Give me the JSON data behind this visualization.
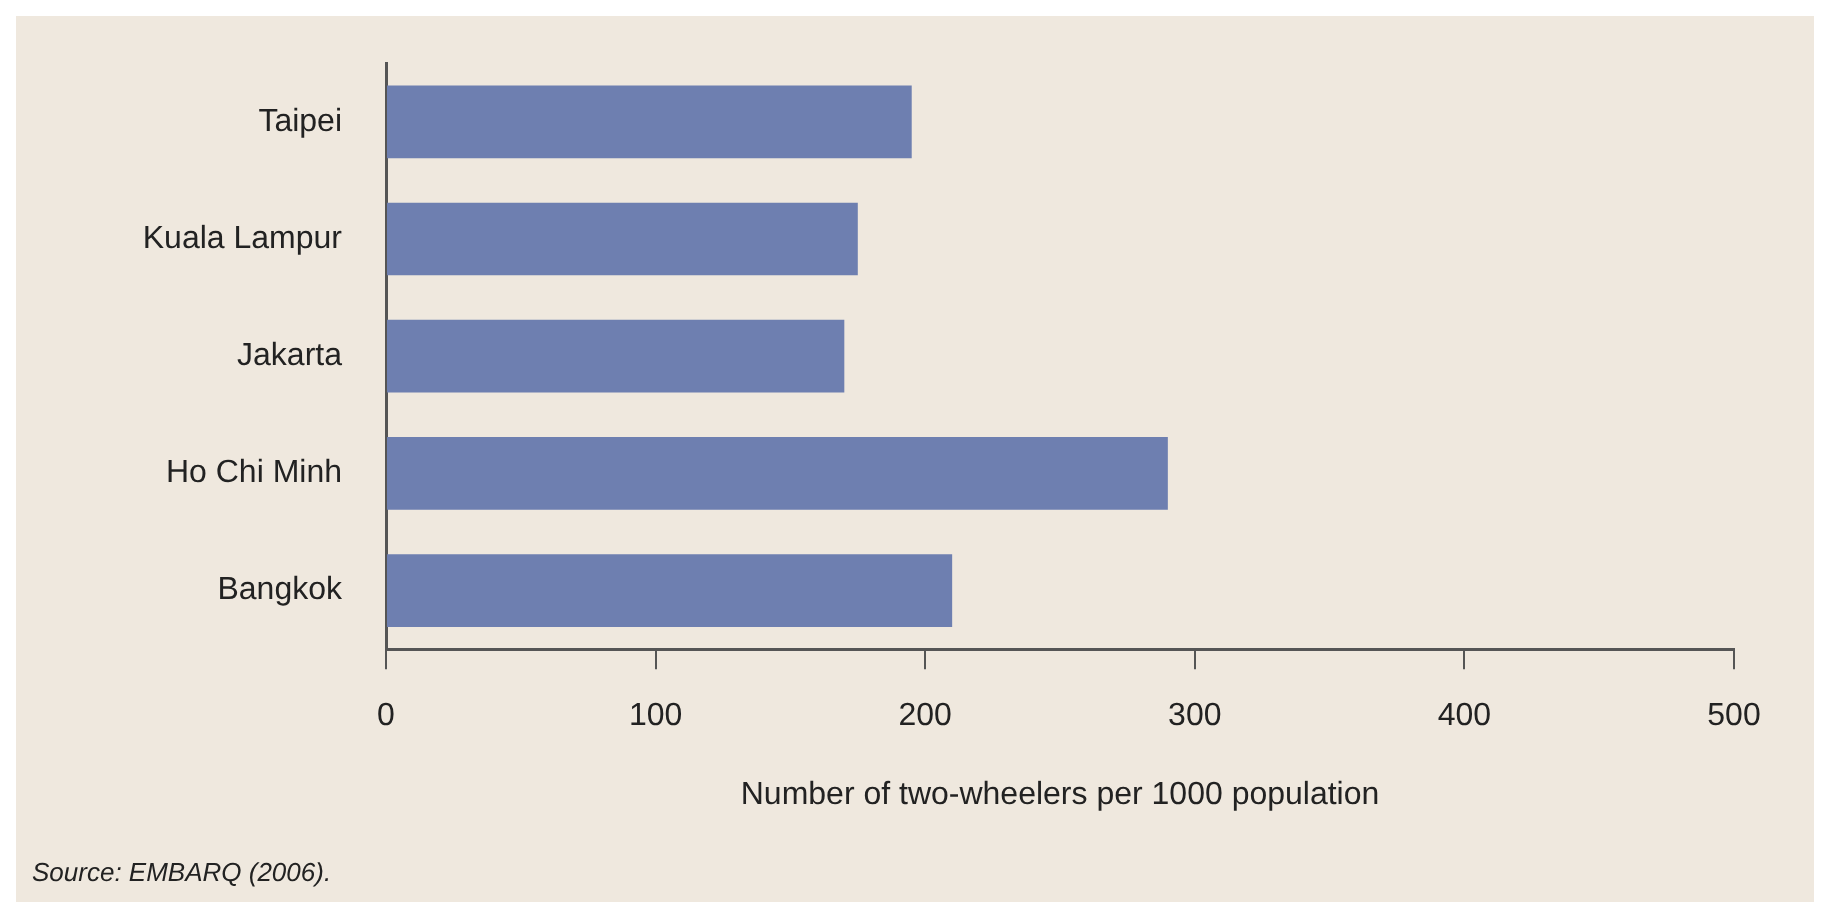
{
  "chart_data": {
    "type": "bar",
    "orientation": "horizontal",
    "categories": [
      "Taipei",
      "Kuala Lampur",
      "Jakarta",
      "Ho Chi Minh",
      "Bangkok"
    ],
    "values": [
      195,
      175,
      170,
      290,
      210
    ],
    "color": "#6e7fb0",
    "xlabel": "Number of two-wheelers per 1000 population",
    "xlim": [
      0,
      500
    ],
    "xticks": [
      0,
      100,
      200,
      300,
      400,
      500
    ],
    "grid": false,
    "legend": false,
    "annotations": [
      "Source: EMBARQ (2006)."
    ]
  }
}
